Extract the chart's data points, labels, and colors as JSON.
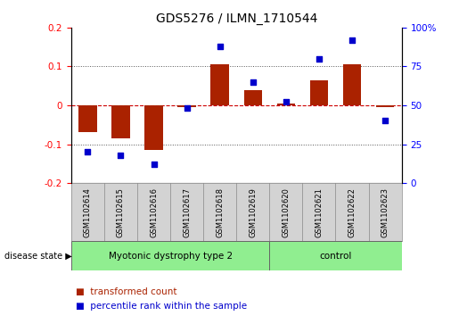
{
  "title": "GDS5276 / ILMN_1710544",
  "samples": [
    "GSM1102614",
    "GSM1102615",
    "GSM1102616",
    "GSM1102617",
    "GSM1102618",
    "GSM1102619",
    "GSM1102620",
    "GSM1102621",
    "GSM1102622",
    "GSM1102623"
  ],
  "transformed_count": [
    -0.07,
    -0.085,
    -0.115,
    -0.005,
    0.105,
    0.04,
    0.005,
    0.065,
    0.105,
    -0.005
  ],
  "percentile_rank": [
    20,
    18,
    12,
    48,
    88,
    65,
    52,
    80,
    92,
    40
  ],
  "bar_color": "#aa2200",
  "dot_color": "#0000cc",
  "ylim_left": [
    -0.2,
    0.2
  ],
  "ylim_right": [
    0,
    100
  ],
  "yticks_left": [
    -0.2,
    -0.1,
    0.0,
    0.1,
    0.2
  ],
  "yticks_right": [
    0,
    25,
    50,
    75,
    100
  ],
  "ytick_labels_right": [
    "0",
    "25",
    "50",
    "75",
    "100%"
  ],
  "hline_color": "#cc0000",
  "dotted_color": "#555555",
  "group1_label": "Myotonic dystrophy type 2",
  "group2_label": "control",
  "group1_indices": [
    0,
    1,
    2,
    3,
    4,
    5
  ],
  "group2_indices": [
    6,
    7,
    8,
    9
  ],
  "disease_state_label": "disease state",
  "legend1_label": "transformed count",
  "legend2_label": "percentile rank within the sample",
  "bg_plot": "#ffffff",
  "bg_sample_boxes": "#d3d3d3",
  "bg_group": "#90ee90"
}
